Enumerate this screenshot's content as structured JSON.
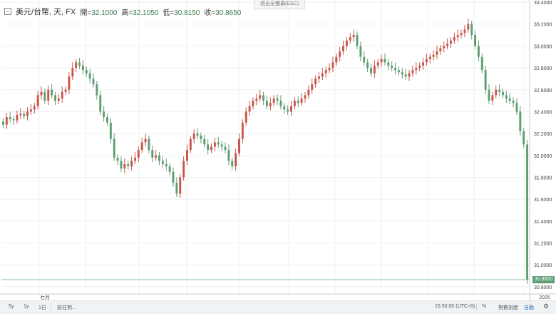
{
  "legend": {
    "symbol": "美元/台幣, 天, FX",
    "open_label": "開=",
    "open_value": "32.1000",
    "high_label": "高=",
    "high_value": "32.1050",
    "low_label": "低=",
    "low_value": "30.8150",
    "close_label": "收=",
    "close_value": "30.8650"
  },
  "esc_hint": "退出全螢幕(ESC)",
  "bottom_bar": {
    "range_5y": "5y",
    "range_1y": "1y",
    "range_1d": "1日",
    "goto": "前往到...",
    "time": "15:50:00 (UTC+8)",
    "percent": "%",
    "log": "對數刻度",
    "auto": "自動"
  },
  "current_price_tag": "30.8650",
  "colors": {
    "up": "#c9564a",
    "down": "#5f9e74",
    "grid": "#eef0f2",
    "price_line": "#9fc7ad"
  },
  "chart_data": {
    "type": "candlestick",
    "title": "",
    "xlabel": "",
    "ylabel": "",
    "ylim": [
      30.74,
      33.42
    ],
    "yticks": [
      30.8,
      31.0,
      31.2,
      31.4,
      31.6,
      31.8,
      32.0,
      32.2,
      32.4,
      32.6,
      32.8,
      33.0,
      33.2,
      33.4
    ],
    "ytick_labels": [
      "30.8000",
      "31.0000",
      "31.2000",
      "31.4000",
      "31.6000",
      "31.8000",
      "32.0000",
      "32.2000",
      "32.4000",
      "32.6000",
      "32.8000",
      "33.0000",
      "33.2000",
      "33.4000"
    ],
    "x_labels": [
      {
        "index": 12,
        "label": "七月"
      },
      {
        "index": 156,
        "label": "2025"
      }
    ],
    "last_price": 30.865,
    "close": [
      32.28,
      32.35,
      32.33,
      32.32,
      32.37,
      32.38,
      32.36,
      32.4,
      32.42,
      32.45,
      32.55,
      32.58,
      32.5,
      32.6,
      32.55,
      32.5,
      32.52,
      32.58,
      32.6,
      32.72,
      32.8,
      32.85,
      32.82,
      32.78,
      32.75,
      32.7,
      32.65,
      32.55,
      32.4,
      32.35,
      32.3,
      32.15,
      31.98,
      31.95,
      31.88,
      31.92,
      31.9,
      31.95,
      31.98,
      32.05,
      32.12,
      32.15,
      32.05,
      31.98,
      32.0,
      31.95,
      31.92,
      31.9,
      31.85,
      31.75,
      31.65,
      31.8,
      31.95,
      32.05,
      32.15,
      32.2,
      32.18,
      32.15,
      32.1,
      32.05,
      32.08,
      32.12,
      32.1,
      32.08,
      32.05,
      31.95,
      31.9,
      32.02,
      32.15,
      32.3,
      32.4,
      32.45,
      32.5,
      32.52,
      32.55,
      32.5,
      32.45,
      32.48,
      32.52,
      32.5,
      32.45,
      32.42,
      32.4,
      32.45,
      32.5,
      32.48,
      32.52,
      32.55,
      32.6,
      32.65,
      32.7,
      32.72,
      32.75,
      32.78,
      32.8,
      32.85,
      32.9,
      32.95,
      33.0,
      33.05,
      33.08,
      33.1,
      33.0,
      32.9,
      32.85,
      32.8,
      32.75,
      32.82,
      32.85,
      32.88,
      32.85,
      32.82,
      32.8,
      32.78,
      32.76,
      32.74,
      32.72,
      32.75,
      32.78,
      32.8,
      32.82,
      32.85,
      32.88,
      32.9,
      32.92,
      32.95,
      32.98,
      33.0,
      33.02,
      33.05,
      33.08,
      33.1,
      33.12,
      33.15,
      33.2,
      33.1,
      33.0,
      32.9,
      32.78,
      32.6,
      32.5,
      32.55,
      32.6,
      32.58,
      32.55,
      32.52,
      32.5,
      32.48,
      32.4,
      32.22,
      32.1,
      30.865
    ]
  }
}
